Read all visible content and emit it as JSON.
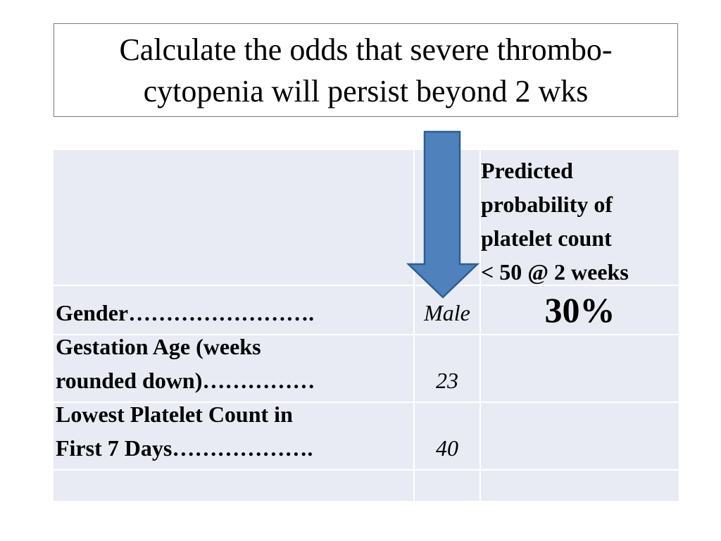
{
  "title": {
    "line1": "Calculate the odds that severe thrombo-",
    "line2": "cytopenia will persist beyond 2 wks"
  },
  "table": {
    "header": {
      "line1": "Predicted",
      "line2": "probability of",
      "line3": "platelet count",
      "line4": "< 50 @ 2 weeks"
    },
    "result": "30%",
    "rows": [
      {
        "label_lines": [
          "Gender……………………."
        ],
        "value": "Male"
      },
      {
        "label_lines": [
          "Gestation Age (weeks",
          "rounded down)……………"
        ],
        "value": "23"
      },
      {
        "label_lines": [
          "Lowest Platelet Count in",
          "First 7 Days………………."
        ],
        "value": "40"
      }
    ]
  },
  "arrow": {
    "icon": "down-arrow-icon",
    "fill": "#4f81bd",
    "stroke": "#2f5d91"
  },
  "colors": {
    "cell_fill": "#e8ebf3",
    "title_border": "#7a7a7a"
  }
}
